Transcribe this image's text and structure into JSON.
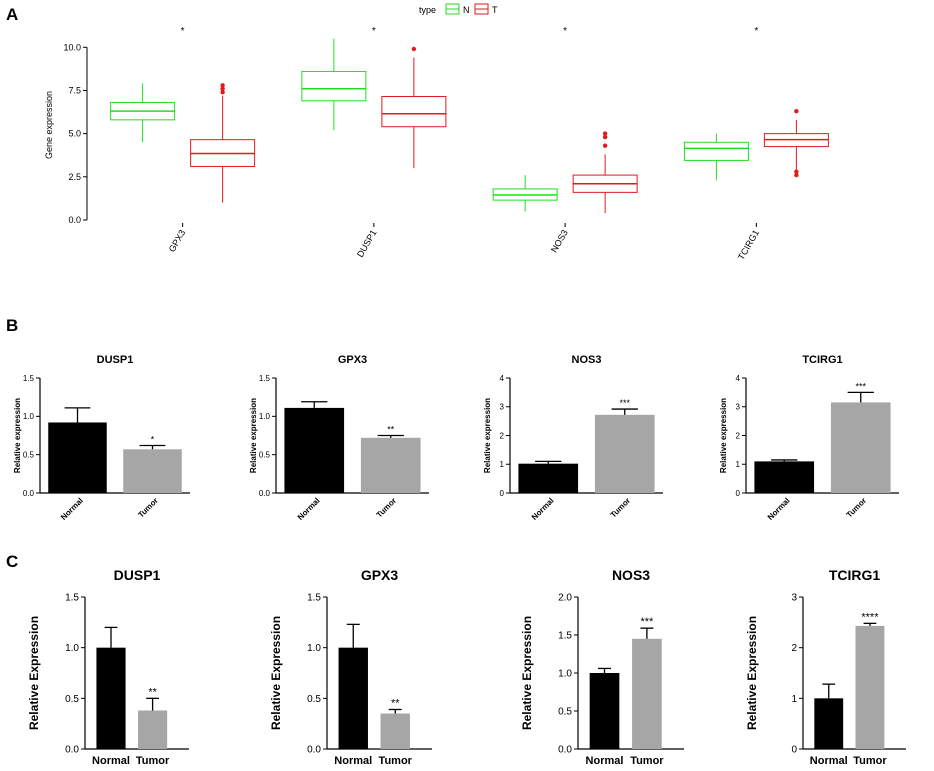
{
  "panels": {
    "A": {
      "label": "A",
      "legend": {
        "title": "type",
        "items": [
          {
            "key": "N",
            "color": "#22dd22"
          },
          {
            "key": "T",
            "color": "#e31a1c"
          }
        ]
      }
    },
    "B": {
      "label": "B"
    },
    "C": {
      "label": "C"
    }
  },
  "chart_data": [
    {
      "panel": "A",
      "type": "box",
      "ylabel": "Gene expression",
      "ylim": [
        0,
        11
      ],
      "yticks": [
        "0.0",
        "2.5",
        "5.0",
        "7.5",
        "10.0"
      ],
      "categories": [
        "GPX3",
        "DUSP1",
        "NOS3",
        "TCIRG1"
      ],
      "significance": [
        "*",
        "*",
        "*",
        "*"
      ],
      "series": [
        {
          "name": "N",
          "color": "#22dd22",
          "boxes": [
            {
              "min": 4.5,
              "q1": 5.8,
              "median": 6.3,
              "q3": 6.8,
              "max": 7.9,
              "outliers": []
            },
            {
              "min": 5.2,
              "q1": 6.9,
              "median": 7.6,
              "q3": 8.6,
              "max": 10.5,
              "outliers": []
            },
            {
              "min": 0.5,
              "q1": 1.15,
              "median": 1.45,
              "q3": 1.8,
              "max": 2.6,
              "outliers": []
            },
            {
              "min": 2.3,
              "q1": 3.45,
              "median": 4.15,
              "q3": 4.5,
              "max": 5.0,
              "outliers": []
            }
          ]
        },
        {
          "name": "T",
          "color": "#e31a1c",
          "boxes": [
            {
              "min": 1.0,
              "q1": 3.1,
              "median": 3.85,
              "q3": 4.65,
              "max": 7.2,
              "outliers": [
                7.4,
                7.6,
                7.8
              ]
            },
            {
              "min": 3.0,
              "q1": 5.4,
              "median": 6.15,
              "q3": 7.15,
              "max": 9.4,
              "outliers": [
                9.9
              ]
            },
            {
              "min": 0.4,
              "q1": 1.6,
              "median": 2.1,
              "q3": 2.6,
              "max": 3.8,
              "outliers": [
                4.3,
                4.8,
                5.0
              ]
            },
            {
              "min": 2.9,
              "q1": 4.25,
              "median": 4.65,
              "q3": 5.0,
              "max": 5.8,
              "outliers": [
                2.6,
                2.8,
                6.3
              ]
            }
          ]
        }
      ]
    },
    {
      "panel": "B",
      "type": "bar",
      "title": "DUSP1",
      "ylabel": "Relative expression",
      "ylim": [
        0,
        1.5
      ],
      "yticks": [
        "0.0",
        "0.5",
        "1.0",
        "1.5"
      ],
      "categories": [
        "Normal",
        "Tumor"
      ],
      "values": [
        0.92,
        0.57
      ],
      "errors": [
        0.19,
        0.05
      ],
      "colors": [
        "#000000",
        "#a6a6a6"
      ],
      "significance": [
        "",
        "*"
      ]
    },
    {
      "panel": "B",
      "type": "bar",
      "title": "GPX3",
      "ylabel": "Relative expression",
      "ylim": [
        0,
        1.5
      ],
      "yticks": [
        "0.0",
        "0.5",
        "1.0",
        "1.5"
      ],
      "categories": [
        "Normal",
        "Tumor"
      ],
      "values": [
        1.11,
        0.72
      ],
      "errors": [
        0.08,
        0.03
      ],
      "colors": [
        "#000000",
        "#a6a6a6"
      ],
      "significance": [
        "",
        "**"
      ]
    },
    {
      "panel": "B",
      "type": "bar",
      "title": "NOS3",
      "ylabel": "Relative expression",
      "ylim": [
        0,
        4
      ],
      "yticks": [
        "0",
        "1",
        "2",
        "3",
        "4"
      ],
      "categories": [
        "Normal",
        "Tumor"
      ],
      "values": [
        1.02,
        2.72
      ],
      "errors": [
        0.08,
        0.2
      ],
      "colors": [
        "#000000",
        "#a6a6a6"
      ],
      "significance": [
        "",
        "***"
      ]
    },
    {
      "panel": "B",
      "type": "bar",
      "title": "TCIRG1",
      "ylabel": "Relative expression",
      "ylim": [
        0,
        4
      ],
      "yticks": [
        "0",
        "1",
        "2",
        "3",
        "4"
      ],
      "categories": [
        "Normal",
        "Tumor"
      ],
      "values": [
        1.1,
        3.15
      ],
      "errors": [
        0.05,
        0.35
      ],
      "colors": [
        "#000000",
        "#a6a6a6"
      ],
      "significance": [
        "",
        "***"
      ]
    },
    {
      "panel": "C",
      "type": "bar",
      "title": "DUSP1",
      "ylabel": "Relative Expression",
      "ylim": [
        0,
        1.5
      ],
      "yticks": [
        "0.0",
        "0.5",
        "1.0",
        "1.5"
      ],
      "categories": [
        "Normal",
        "Tumor"
      ],
      "values": [
        1.0,
        0.38
      ],
      "errors": [
        0.2,
        0.12
      ],
      "colors": [
        "#000000",
        "#a6a6a6"
      ],
      "significance": [
        "",
        "**"
      ]
    },
    {
      "panel": "C",
      "type": "bar",
      "title": "GPX3",
      "ylabel": "Relative Expression",
      "ylim": [
        0,
        1.5
      ],
      "yticks": [
        "0.0",
        "0.5",
        "1.0",
        "1.5"
      ],
      "categories": [
        "Normal",
        "Tumor"
      ],
      "values": [
        1.0,
        0.35
      ],
      "errors": [
        0.23,
        0.04
      ],
      "colors": [
        "#000000",
        "#a6a6a6"
      ],
      "significance": [
        "",
        "**"
      ]
    },
    {
      "panel": "C",
      "type": "bar",
      "title": "NOS3",
      "ylabel": "Relative Expression",
      "ylim": [
        0,
        2.0
      ],
      "yticks": [
        "0.0",
        "0.5",
        "1.0",
        "1.5",
        "2.0"
      ],
      "categories": [
        "Normal",
        "Tumor"
      ],
      "values": [
        1.0,
        1.45
      ],
      "errors": [
        0.06,
        0.14
      ],
      "colors": [
        "#000000",
        "#a6a6a6"
      ],
      "significance": [
        "",
        "***"
      ]
    },
    {
      "panel": "C",
      "type": "bar",
      "title": "TCIRG1",
      "ylabel": "Relative Expression",
      "ylim": [
        0,
        3
      ],
      "yticks": [
        "0",
        "1",
        "2",
        "3"
      ],
      "categories": [
        "Normal",
        "Tumor"
      ],
      "values": [
        1.0,
        2.43
      ],
      "errors": [
        0.28,
        0.05
      ],
      "colors": [
        "#000000",
        "#a6a6a6"
      ],
      "significance": [
        "",
        "****"
      ]
    }
  ]
}
